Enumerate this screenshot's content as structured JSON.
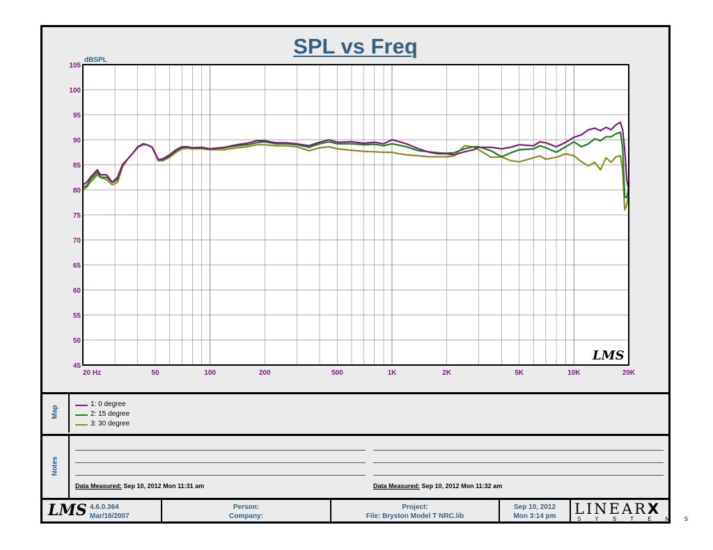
{
  "chart_data": {
    "type": "line",
    "title": "SPL vs Freq",
    "ylabel": "dBSPL",
    "xscale": "log",
    "xlim": [
      20,
      20000
    ],
    "ylim": [
      45,
      105
    ],
    "grid": true,
    "legend_position": "map panel below chart",
    "y_ticks": [
      "105",
      "100",
      "95",
      "90",
      "85",
      "80",
      "75",
      "70",
      "65",
      "60",
      "55",
      "50",
      "45"
    ],
    "x_ticks": [
      {
        "value": 20,
        "label": "20  Hz"
      },
      {
        "value": 50,
        "label": "50"
      },
      {
        "value": 100,
        "label": "100"
      },
      {
        "value": 200,
        "label": "200"
      },
      {
        "value": 500,
        "label": "500"
      },
      {
        "value": 1000,
        "label": "1K"
      },
      {
        "value": 2000,
        "label": "2K"
      },
      {
        "value": 5000,
        "label": "5K"
      },
      {
        "value": 10000,
        "label": "10K"
      },
      {
        "value": 20000,
        "label": "20K"
      }
    ],
    "series": [
      {
        "name": "1: 0 degree",
        "color": "#7a1a7a",
        "x": [
          20,
          21,
          22,
          24,
          25,
          27,
          29,
          31,
          33,
          35,
          38,
          40,
          43,
          45,
          48,
          52,
          55,
          60,
          65,
          70,
          75,
          80,
          90,
          100,
          120,
          140,
          160,
          180,
          200,
          230,
          260,
          300,
          350,
          400,
          450,
          500,
          600,
          700,
          800,
          900,
          1000,
          1100,
          1200,
          1400,
          1600,
          1800,
          2000,
          2200,
          2500,
          2800,
          3000,
          3500,
          4000,
          4500,
          5000,
          6000,
          6500,
          7000,
          8000,
          9000,
          10000,
          11000,
          12000,
          13000,
          14000,
          15000,
          16000,
          17000,
          18000,
          18500,
          19000,
          19500,
          20000
        ],
        "y": [
          81,
          81.5,
          82.5,
          84,
          83,
          83,
          81.5,
          82.5,
          85,
          86,
          87.5,
          88.5,
          89.2,
          89,
          88.5,
          86,
          86.2,
          87,
          88,
          88.6,
          88.6,
          88.4,
          88.5,
          88.2,
          88.5,
          89,
          89.3,
          89.8,
          89.8,
          89.4,
          89.4,
          89.2,
          88.8,
          89.5,
          90,
          89.5,
          89.6,
          89.3,
          89.5,
          89.2,
          90,
          89.6,
          89.2,
          88.2,
          87.5,
          87.2,
          87.2,
          87,
          87.6,
          88,
          88.5,
          88.5,
          88.2,
          88.5,
          89,
          88.8,
          89.6,
          89.4,
          88.6,
          89.5,
          90.5,
          91,
          92,
          92.3,
          91.8,
          92.5,
          92,
          93,
          93.5,
          92,
          88,
          82,
          80
        ]
      },
      {
        "name": "2: 15 degree",
        "color": "#1e7a1e",
        "x": [
          20,
          21,
          22,
          24,
          25,
          27,
          29,
          31,
          33,
          35,
          38,
          40,
          43,
          45,
          48,
          52,
          55,
          60,
          65,
          70,
          75,
          80,
          90,
          100,
          120,
          140,
          160,
          180,
          200,
          230,
          260,
          300,
          350,
          400,
          450,
          500,
          600,
          700,
          800,
          900,
          1000,
          1100,
          1200,
          1400,
          1600,
          1800,
          2000,
          2200,
          2500,
          2800,
          3000,
          3500,
          4000,
          4500,
          5000,
          6000,
          6500,
          7000,
          8000,
          9000,
          10000,
          11000,
          12000,
          13000,
          14000,
          15000,
          16000,
          17000,
          18000,
          18500,
          19000,
          19500,
          20000
        ],
        "y": [
          80.5,
          80.8,
          82,
          83.5,
          82.5,
          82.5,
          81.5,
          82,
          85,
          86,
          87.5,
          88.6,
          89.2,
          89,
          88.5,
          86,
          86,
          86.8,
          87.8,
          88.4,
          88.5,
          88.3,
          88.4,
          88.2,
          88.4,
          88.8,
          89,
          89.4,
          89.6,
          89.2,
          89.2,
          89,
          88.5,
          89.2,
          89.6,
          89.2,
          89.2,
          89,
          89.1,
          88.8,
          89.2,
          88.9,
          88.6,
          87.8,
          87.6,
          87.4,
          87.3,
          87.4,
          88.2,
          88.6,
          88.6,
          87.8,
          86.6,
          87.4,
          88,
          88.2,
          88.8,
          88.4,
          87.5,
          88.6,
          89.6,
          88.6,
          89.2,
          90.2,
          89.8,
          90.6,
          90.6,
          91.2,
          91.5,
          88.5,
          78.5,
          78.5,
          80.5
        ]
      },
      {
        "name": "3: 30 degree",
        "color": "#8a8a1e",
        "x": [
          20,
          21,
          22,
          24,
          25,
          27,
          29,
          31,
          33,
          35,
          38,
          40,
          43,
          45,
          48,
          52,
          55,
          60,
          65,
          70,
          75,
          80,
          90,
          100,
          120,
          140,
          160,
          180,
          200,
          230,
          260,
          300,
          350,
          400,
          450,
          500,
          600,
          700,
          800,
          900,
          1000,
          1100,
          1200,
          1400,
          1600,
          1800,
          2000,
          2200,
          2500,
          2800,
          3000,
          3500,
          4000,
          4500,
          5000,
          6000,
          6500,
          7000,
          8000,
          9000,
          10000,
          11000,
          12000,
          13000,
          14000,
          15000,
          16000,
          17000,
          18000,
          18500,
          19000,
          19500,
          20000
        ],
        "y": [
          80,
          80.5,
          81.5,
          83,
          82.5,
          82,
          81,
          81.5,
          84.5,
          86,
          87.5,
          88.5,
          89,
          89,
          88.5,
          85.8,
          85.8,
          86.5,
          87.5,
          88.2,
          88.3,
          88.2,
          88.2,
          88,
          88,
          88.4,
          88.6,
          89,
          89,
          88.8,
          88.8,
          88.6,
          87.8,
          88.4,
          88.6,
          88.2,
          87.9,
          87.7,
          87.6,
          87.5,
          87.5,
          87.2,
          87,
          86.8,
          86.6,
          86.6,
          86.6,
          86.8,
          88.8,
          88.6,
          88,
          86.5,
          86.6,
          85.8,
          85.6,
          86.4,
          86.8,
          86.1,
          86.5,
          87.2,
          86.8,
          85.6,
          84.8,
          85.5,
          84,
          86.4,
          85.5,
          86.6,
          86.8,
          84,
          76,
          77,
          79.5
        ]
      }
    ]
  },
  "map": {
    "label": "Map"
  },
  "notes": {
    "label": "Notes",
    "left_measured_label": "Data Measured:",
    "left_measured_value": "Sep 10, 2012  Mon 11:31 am",
    "right_measured_label": "Data Measured:",
    "right_measured_value": "Sep 10, 2012  Mon 11:32 am"
  },
  "footer": {
    "logo": "LMS",
    "version": "4.6.0.364",
    "version_date": "Mar/16/2007",
    "person_label": "Person:",
    "company_label": "Company:",
    "project_label": "Project:",
    "file_label": "File: Bryston Model T NRC.lib",
    "date": "Sep 10, 2012",
    "time": "Mon  3:14 pm",
    "brand_main": "LINEAR",
    "brand_x": "X",
    "brand_sub": "S Y S T E M S"
  },
  "watermark": "LMS",
  "colors": {
    "title": "#35607f",
    "tick": "#7a1a7a",
    "grid": "#8a8a8a"
  }
}
